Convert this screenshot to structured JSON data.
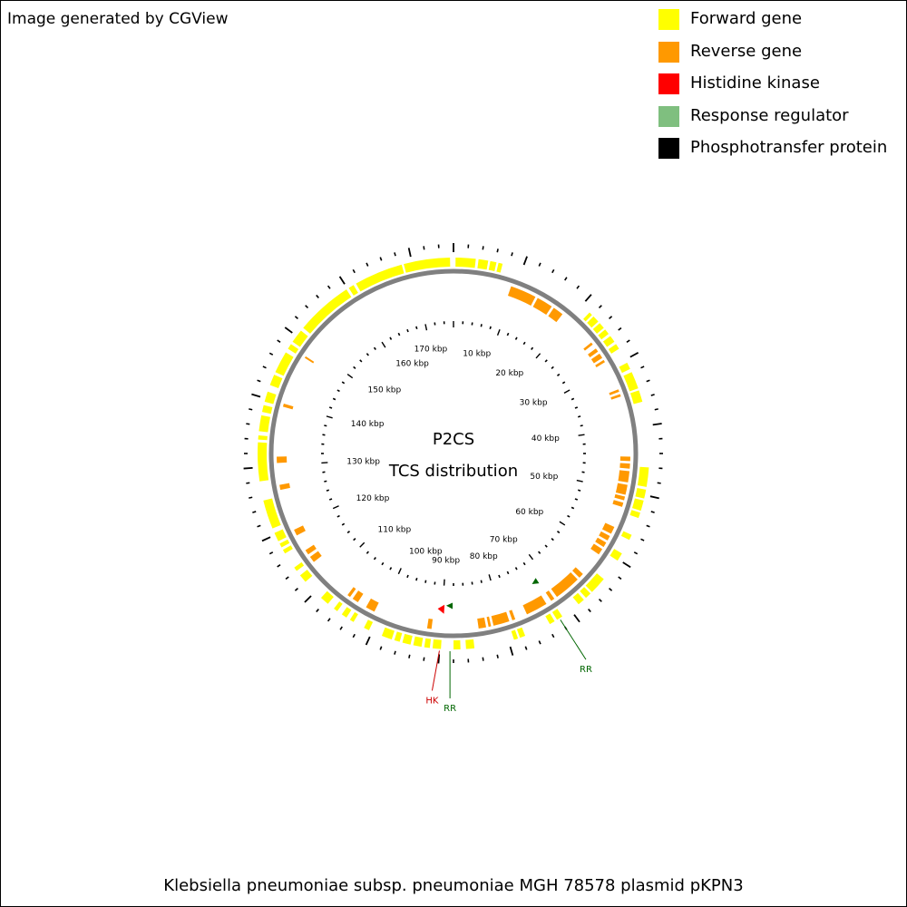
{
  "credit": "Image generated by CGView",
  "colors": {
    "forward": "#ffff00",
    "reverse": "#ff9900",
    "hk": "#ff0000",
    "rr": "#7fbf7f",
    "hpt": "#000000",
    "backbone": "#808080",
    "hk_label": "#cc0000",
    "rr_label": "#006600"
  },
  "legend": [
    {
      "label": "Forward gene",
      "color": "#ffff00"
    },
    {
      "label": "Reverse gene",
      "color": "#ff9900"
    },
    {
      "label": "Histidine kinase",
      "color": "#ff0000"
    },
    {
      "label": "Response regulator",
      "color": "#7fbf7f"
    },
    {
      "label": "Phosphotransfer protein",
      "color": "#000000"
    }
  ],
  "center_title": "P2CS",
  "center_subtitle": "TCS distribution",
  "caption": "Klebsiella pneumoniae subsp. pneumoniae MGH 78578 plasmid pKPN3",
  "sequence_length_kbp": 176,
  "kbp_labels": [
    "10 kbp",
    "20 kbp",
    "30 kbp",
    "40 kbp",
    "50 kbp",
    "60 kbp",
    "70 kbp",
    "80 kbp",
    "90 kbp",
    "100 kbp",
    "110 kbp",
    "120 kbp",
    "130 kbp",
    "140 kbp",
    "150 kbp",
    "160 kbp",
    "170 kbp"
  ],
  "forward_genes_kbp": [
    [
      0.3,
      3.2
    ],
    [
      3.6,
      5.0
    ],
    [
      5.3,
      6.2
    ],
    [
      6.5,
      7.1
    ],
    [
      21.5,
      22.0
    ],
    [
      22.3,
      23.3
    ],
    [
      23.6,
      24.5
    ],
    [
      24.8,
      25.6
    ],
    [
      26.0,
      27.0
    ],
    [
      27.4,
      28.2
    ],
    [
      30.5,
      31.5
    ],
    [
      32.0,
      34.5
    ],
    [
      34.8,
      36.5
    ],
    [
      46.0,
      48.8
    ],
    [
      49.2,
      50.5
    ],
    [
      50.8,
      52.3
    ],
    [
      52.6,
      53.4
    ],
    [
      56.0,
      56.8
    ],
    [
      59.0,
      60.2
    ],
    [
      63.5,
      66.0
    ],
    [
      66.3,
      67.2
    ],
    [
      67.6,
      68.6
    ],
    [
      71.5,
      72.4
    ],
    [
      72.8,
      73.6
    ],
    [
      77.5,
      78.3
    ],
    [
      78.6,
      79.2
    ],
    [
      85.0,
      86.2
    ],
    [
      87.0,
      88.0
    ],
    [
      89.8,
      91.0
    ],
    [
      91.4,
      92.2
    ],
    [
      92.6,
      93.8
    ],
    [
      94.2,
      95.4
    ],
    [
      95.8,
      96.6
    ],
    [
      97.0,
      98.5
    ],
    [
      100.5,
      101.3
    ],
    [
      103.0,
      103.6
    ],
    [
      104.2,
      105.0
    ],
    [
      105.8,
      106.4
    ],
    [
      107.5,
      108.8
    ],
    [
      112.0,
      113.2
    ],
    [
      114.0,
      114.6
    ],
    [
      117.0,
      117.6
    ],
    [
      118.0,
      118.6
    ],
    [
      119.0,
      120.3
    ],
    [
      121.0,
      125.2
    ],
    [
      128.0,
      133.6
    ],
    [
      134.0,
      134.6
    ],
    [
      135.2,
      137.5
    ],
    [
      138.0,
      139.0
    ],
    [
      139.5,
      141.0
    ],
    [
      142.0,
      143.6
    ],
    [
      144.0,
      147.2
    ],
    [
      147.8,
      148.6
    ],
    [
      149.0,
      151.0
    ],
    [
      151.5,
      159.8
    ],
    [
      160.2,
      161.0
    ],
    [
      161.4,
      168.5
    ],
    [
      168.8,
      175.5
    ]
  ],
  "reverse_genes_kbp": [
    [
      9.3,
      13.5
    ],
    [
      13.9,
      16.5
    ],
    [
      16.9,
      18.6
    ],
    [
      25.0,
      25.4
    ],
    [
      26.2,
      26.8
    ],
    [
      27.2,
      28.0
    ],
    [
      28.4,
      28.8
    ],
    [
      33.6,
      34.0
    ],
    [
      34.4,
      34.8
    ],
    [
      44.5,
      45.2
    ],
    [
      45.6,
      46.4
    ],
    [
      46.8,
      48.6
    ],
    [
      49.0,
      50.6
    ],
    [
      50.9,
      51.5
    ],
    [
      51.9,
      52.6
    ],
    [
      56.0,
      57.2
    ],
    [
      57.6,
      58.4
    ],
    [
      58.8,
      59.6
    ],
    [
      60.0,
      61.0
    ],
    [
      65.0,
      65.8
    ],
    [
      66.2,
      70.5
    ],
    [
      71.0,
      71.6
    ],
    [
      72.5,
      76.0
    ],
    [
      78.0,
      78.5
    ],
    [
      79.0,
      81.6
    ],
    [
      82.0,
      82.4
    ],
    [
      82.8,
      84.0
    ],
    [
      91.5,
      92.2
    ],
    [
      101.0,
      102.5
    ],
    [
      104.0,
      105.0
    ],
    [
      105.5,
      106.0
    ],
    [
      113.5,
      114.5
    ],
    [
      115.0,
      115.8
    ],
    [
      118.5,
      119.5
    ],
    [
      126.2,
      127.0
    ],
    [
      130.5,
      131.5
    ],
    [
      139.5,
      140.0
    ],
    [
      148.0,
      148.3
    ]
  ],
  "tcs_marks": [
    {
      "type": "RR",
      "kbp": 72.0,
      "label": "RR"
    },
    {
      "type": "RR",
      "kbp": 88.5,
      "label": "RR"
    },
    {
      "type": "HK",
      "kbp": 90.0,
      "label": "HK"
    }
  ]
}
